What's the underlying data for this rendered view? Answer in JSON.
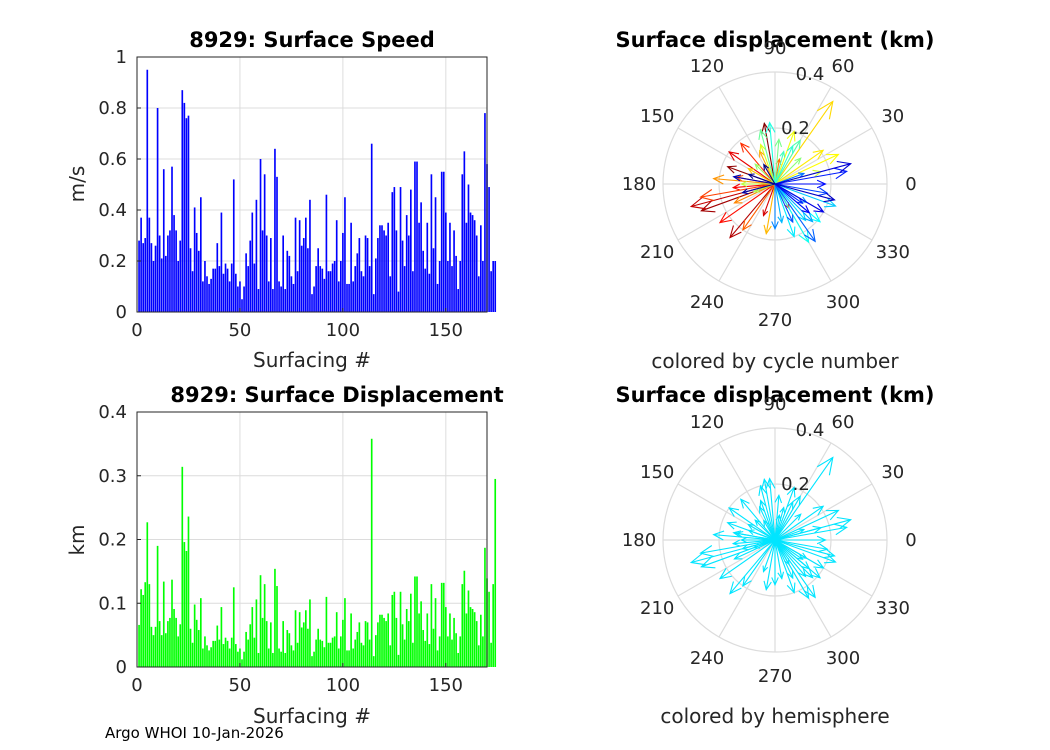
{
  "footer": "Argo WHOI 10-Jan-2026",
  "chart_data": [
    {
      "type": "bar",
      "id": "speed",
      "title": "8929: Surface Speed",
      "xlabel": "Surfacing #",
      "ylabel": "m/s",
      "xlim": [
        0,
        170
      ],
      "ylim": [
        0,
        1
      ],
      "xticks": [
        "0",
        "50",
        "100",
        "150"
      ],
      "yticks": [
        "0",
        "0.2",
        "0.4",
        "0.6",
        "0.8",
        "1"
      ],
      "color": "#0000ff",
      "grid": true,
      "values": [
        0.28,
        0.37,
        0.27,
        0.29,
        0.95,
        0.37,
        0.27,
        0.2,
        0.26,
        0.8,
        0.3,
        0.21,
        0.56,
        0.22,
        0.3,
        0.32,
        0.57,
        0.38,
        0.32,
        0.2,
        0.28,
        0.87,
        0.82,
        0.76,
        0.77,
        0.25,
        0.16,
        0.41,
        0.31,
        0.24,
        0.45,
        0.12,
        0.2,
        0.14,
        0.11,
        0.13,
        0.17,
        0.17,
        0.27,
        0.18,
        0.39,
        0.15,
        0.19,
        0.17,
        0.12,
        0.19,
        0.52,
        0.15,
        0.1,
        0.12,
        0.05,
        0.1,
        0.23,
        0.18,
        0.28,
        0.39,
        0.19,
        0.44,
        0.09,
        0.6,
        0.32,
        0.54,
        0.3,
        0.12,
        0.29,
        0.09,
        0.64,
        0.53,
        0.12,
        0.1,
        0.3,
        0.09,
        0.24,
        0.22,
        0.14,
        0.11,
        0.37,
        0.16,
        0.36,
        0.26,
        0.29,
        0.37,
        0.25,
        0.44,
        0.07,
        0.1,
        0.18,
        0.25,
        0.18,
        0.17,
        0.13,
        0.46,
        0.16,
        0.16,
        0.19,
        0.2,
        0.36,
        0.12,
        0.2,
        0.31,
        0.45,
        0.11,
        0.11,
        0.35,
        0.12,
        0.18,
        0.23,
        0.29,
        0.16,
        0.14,
        0.3,
        0.29,
        0.18,
        0.66,
        0.07,
        0.21,
        0.29,
        0.34,
        0.34,
        0.32,
        0.3,
        0.35,
        0.14,
        0.47,
        0.49,
        0.32,
        0.08,
        0.49,
        0.28,
        0.18,
        0.38,
        0.3,
        0.48,
        0.16,
        0.59,
        0.59,
        0.35,
        0.43,
        0.24,
        0.17,
        0.35,
        0.15,
        0.54,
        0.25,
        0.45,
        0.11,
        0.2,
        0.55,
        0.55,
        0.39,
        0.2,
        0.35,
        0.18,
        0.32,
        0.22,
        0.09,
        0.2,
        0.54,
        0.63,
        0.35,
        0.5,
        0.39,
        0.38,
        0.36,
        0.3,
        0.14,
        0.34,
        0.2,
        0.78,
        0.58,
        0.49,
        0.16,
        0.2,
        0.2
      ]
    },
    {
      "type": "bar",
      "id": "displacement",
      "title": "8929: Surface Displacement",
      "xlabel": "Surfacing #",
      "ylabel": "km",
      "xlim": [
        0,
        170
      ],
      "ylim": [
        0,
        0.4
      ],
      "xticks": [
        "0",
        "50",
        "100",
        "150"
      ],
      "yticks": [
        "0",
        "0.1",
        "0.2",
        "0.3",
        "0.4"
      ],
      "color": "#00ff00",
      "grid": true,
      "values": [
        0.066,
        0.122,
        0.113,
        0.133,
        0.227,
        0.13,
        0.063,
        0.05,
        0.063,
        0.19,
        0.072,
        0.05,
        0.134,
        0.053,
        0.072,
        0.077,
        0.137,
        0.091,
        0.077,
        0.048,
        0.067,
        0.314,
        0.196,
        0.182,
        0.236,
        0.06,
        0.038,
        0.098,
        0.074,
        0.058,
        0.108,
        0.029,
        0.048,
        0.034,
        0.026,
        0.031,
        0.041,
        0.041,
        0.065,
        0.043,
        0.094,
        0.036,
        0.046,
        0.041,
        0.029,
        0.046,
        0.125,
        0.036,
        0.024,
        0.029,
        0.012,
        0.024,
        0.055,
        0.043,
        0.067,
        0.094,
        0.046,
        0.106,
        0.022,
        0.144,
        0.077,
        0.13,
        0.072,
        0.029,
        0.07,
        0.022,
        0.154,
        0.127,
        0.029,
        0.024,
        0.072,
        0.022,
        0.058,
        0.053,
        0.034,
        0.026,
        0.089,
        0.038,
        0.086,
        0.062,
        0.07,
        0.089,
        0.06,
        0.106,
        0.017,
        0.024,
        0.043,
        0.06,
        0.043,
        0.041,
        0.031,
        0.11,
        0.038,
        0.038,
        0.046,
        0.048,
        0.086,
        0.029,
        0.048,
        0.074,
        0.108,
        0.026,
        0.026,
        0.084,
        0.029,
        0.043,
        0.055,
        0.07,
        0.038,
        0.034,
        0.072,
        0.07,
        0.043,
        0.358,
        0.017,
        0.05,
        0.07,
        0.082,
        0.082,
        0.077,
        0.072,
        0.084,
        0.034,
        0.113,
        0.118,
        0.077,
        0.019,
        0.118,
        0.067,
        0.043,
        0.091,
        0.072,
        0.115,
        0.038,
        0.142,
        0.142,
        0.084,
        0.103,
        0.058,
        0.041,
        0.084,
        0.036,
        0.13,
        0.06,
        0.108,
        0.026,
        0.048,
        0.132,
        0.132,
        0.094,
        0.048,
        0.084,
        0.043,
        0.077,
        0.053,
        0.022,
        0.048,
        0.13,
        0.151,
        0.084,
        0.12,
        0.094,
        0.091,
        0.086,
        0.072,
        0.034,
        0.082,
        0.048,
        0.187,
        0.139,
        0.118,
        0.038,
        0.13,
        0.295
      ]
    },
    {
      "type": "polar",
      "id": "polar-cycle",
      "title": "Surface displacement (km)",
      "subtitle": "colored by cycle number",
      "rmax": 0.4,
      "rticks": [
        "0.2",
        "0.4"
      ],
      "angle_ticks": [
        "0",
        "30",
        "60",
        "90",
        "120",
        "150",
        "180",
        "210",
        "240",
        "270",
        "300",
        "330"
      ],
      "colormap": "jet",
      "arrows": [
        {
          "r": 0.22,
          "deg": 100
        },
        {
          "r": 0.18,
          "deg": 160
        },
        {
          "r": 0.28,
          "deg": 200
        },
        {
          "r": 0.25,
          "deg": 230
        },
        {
          "r": 0.31,
          "deg": 195
        },
        {
          "r": 0.12,
          "deg": 250
        },
        {
          "r": 0.2,
          "deg": 145
        },
        {
          "r": 0.15,
          "deg": 185
        },
        {
          "r": 0.24,
          "deg": 215
        },
        {
          "r": 0.1,
          "deg": 300
        },
        {
          "r": 0.19,
          "deg": 130
        },
        {
          "r": 0.27,
          "deg": 190
        },
        {
          "r": 0.14,
          "deg": 170
        },
        {
          "r": 0.2,
          "deg": 235
        },
        {
          "r": 0.09,
          "deg": 80
        },
        {
          "r": 0.16,
          "deg": 205
        },
        {
          "r": 0.22,
          "deg": 175
        },
        {
          "r": 0.13,
          "deg": 115
        },
        {
          "r": 0.18,
          "deg": 260
        },
        {
          "r": 0.11,
          "deg": 150
        },
        {
          "r": 0.36,
          "deg": 55
        },
        {
          "r": 0.21,
          "deg": 35
        },
        {
          "r": 0.25,
          "deg": 25
        },
        {
          "r": 0.2,
          "deg": 70
        },
        {
          "r": 0.15,
          "deg": 110
        },
        {
          "r": 0.17,
          "deg": 15
        },
        {
          "r": 0.12,
          "deg": 180
        },
        {
          "r": 0.08,
          "deg": 200
        },
        {
          "r": 0.1,
          "deg": 135
        },
        {
          "r": 0.13,
          "deg": 45
        },
        {
          "r": 0.16,
          "deg": 85
        },
        {
          "r": 0.2,
          "deg": 105
        },
        {
          "r": 0.18,
          "deg": 60
        },
        {
          "r": 0.12,
          "deg": 75
        },
        {
          "r": 0.15,
          "deg": 65
        },
        {
          "r": 0.22,
          "deg": 95
        },
        {
          "r": 0.24,
          "deg": 300
        },
        {
          "r": 0.21,
          "deg": 320
        },
        {
          "r": 0.2,
          "deg": 290
        },
        {
          "r": 0.17,
          "deg": 310
        },
        {
          "r": 0.23,
          "deg": 340
        },
        {
          "r": 0.14,
          "deg": 280
        },
        {
          "r": 0.19,
          "deg": 315
        },
        {
          "r": 0.13,
          "deg": 330
        },
        {
          "r": 0.16,
          "deg": 270
        },
        {
          "r": 0.11,
          "deg": 20
        },
        {
          "r": 0.25,
          "deg": 305
        },
        {
          "r": 0.15,
          "deg": 295
        },
        {
          "r": 0.19,
          "deg": 350
        },
        {
          "r": 0.12,
          "deg": 325
        },
        {
          "r": 0.26,
          "deg": 10
        },
        {
          "r": 0.18,
          "deg": 0
        },
        {
          "r": 0.16,
          "deg": 320
        },
        {
          "r": 0.2,
          "deg": 330
        },
        {
          "r": 0.28,
          "deg": 15
        },
        {
          "r": 0.22,
          "deg": 345
        },
        {
          "r": 0.15,
          "deg": 170
        },
        {
          "r": 0.12,
          "deg": 195
        },
        {
          "r": 0.1,
          "deg": 160
        },
        {
          "r": 0.08,
          "deg": 120
        }
      ]
    },
    {
      "type": "polar",
      "id": "polar-hemisphere",
      "title": "Surface displacement (km)",
      "subtitle": "colored by hemisphere",
      "rmax": 0.4,
      "rticks": [
        "0.2",
        "0.4"
      ],
      "angle_ticks": [
        "0",
        "30",
        "60",
        "90",
        "120",
        "150",
        "180",
        "210",
        "240",
        "270",
        "300",
        "330"
      ],
      "color": "#00e5ff"
    }
  ]
}
